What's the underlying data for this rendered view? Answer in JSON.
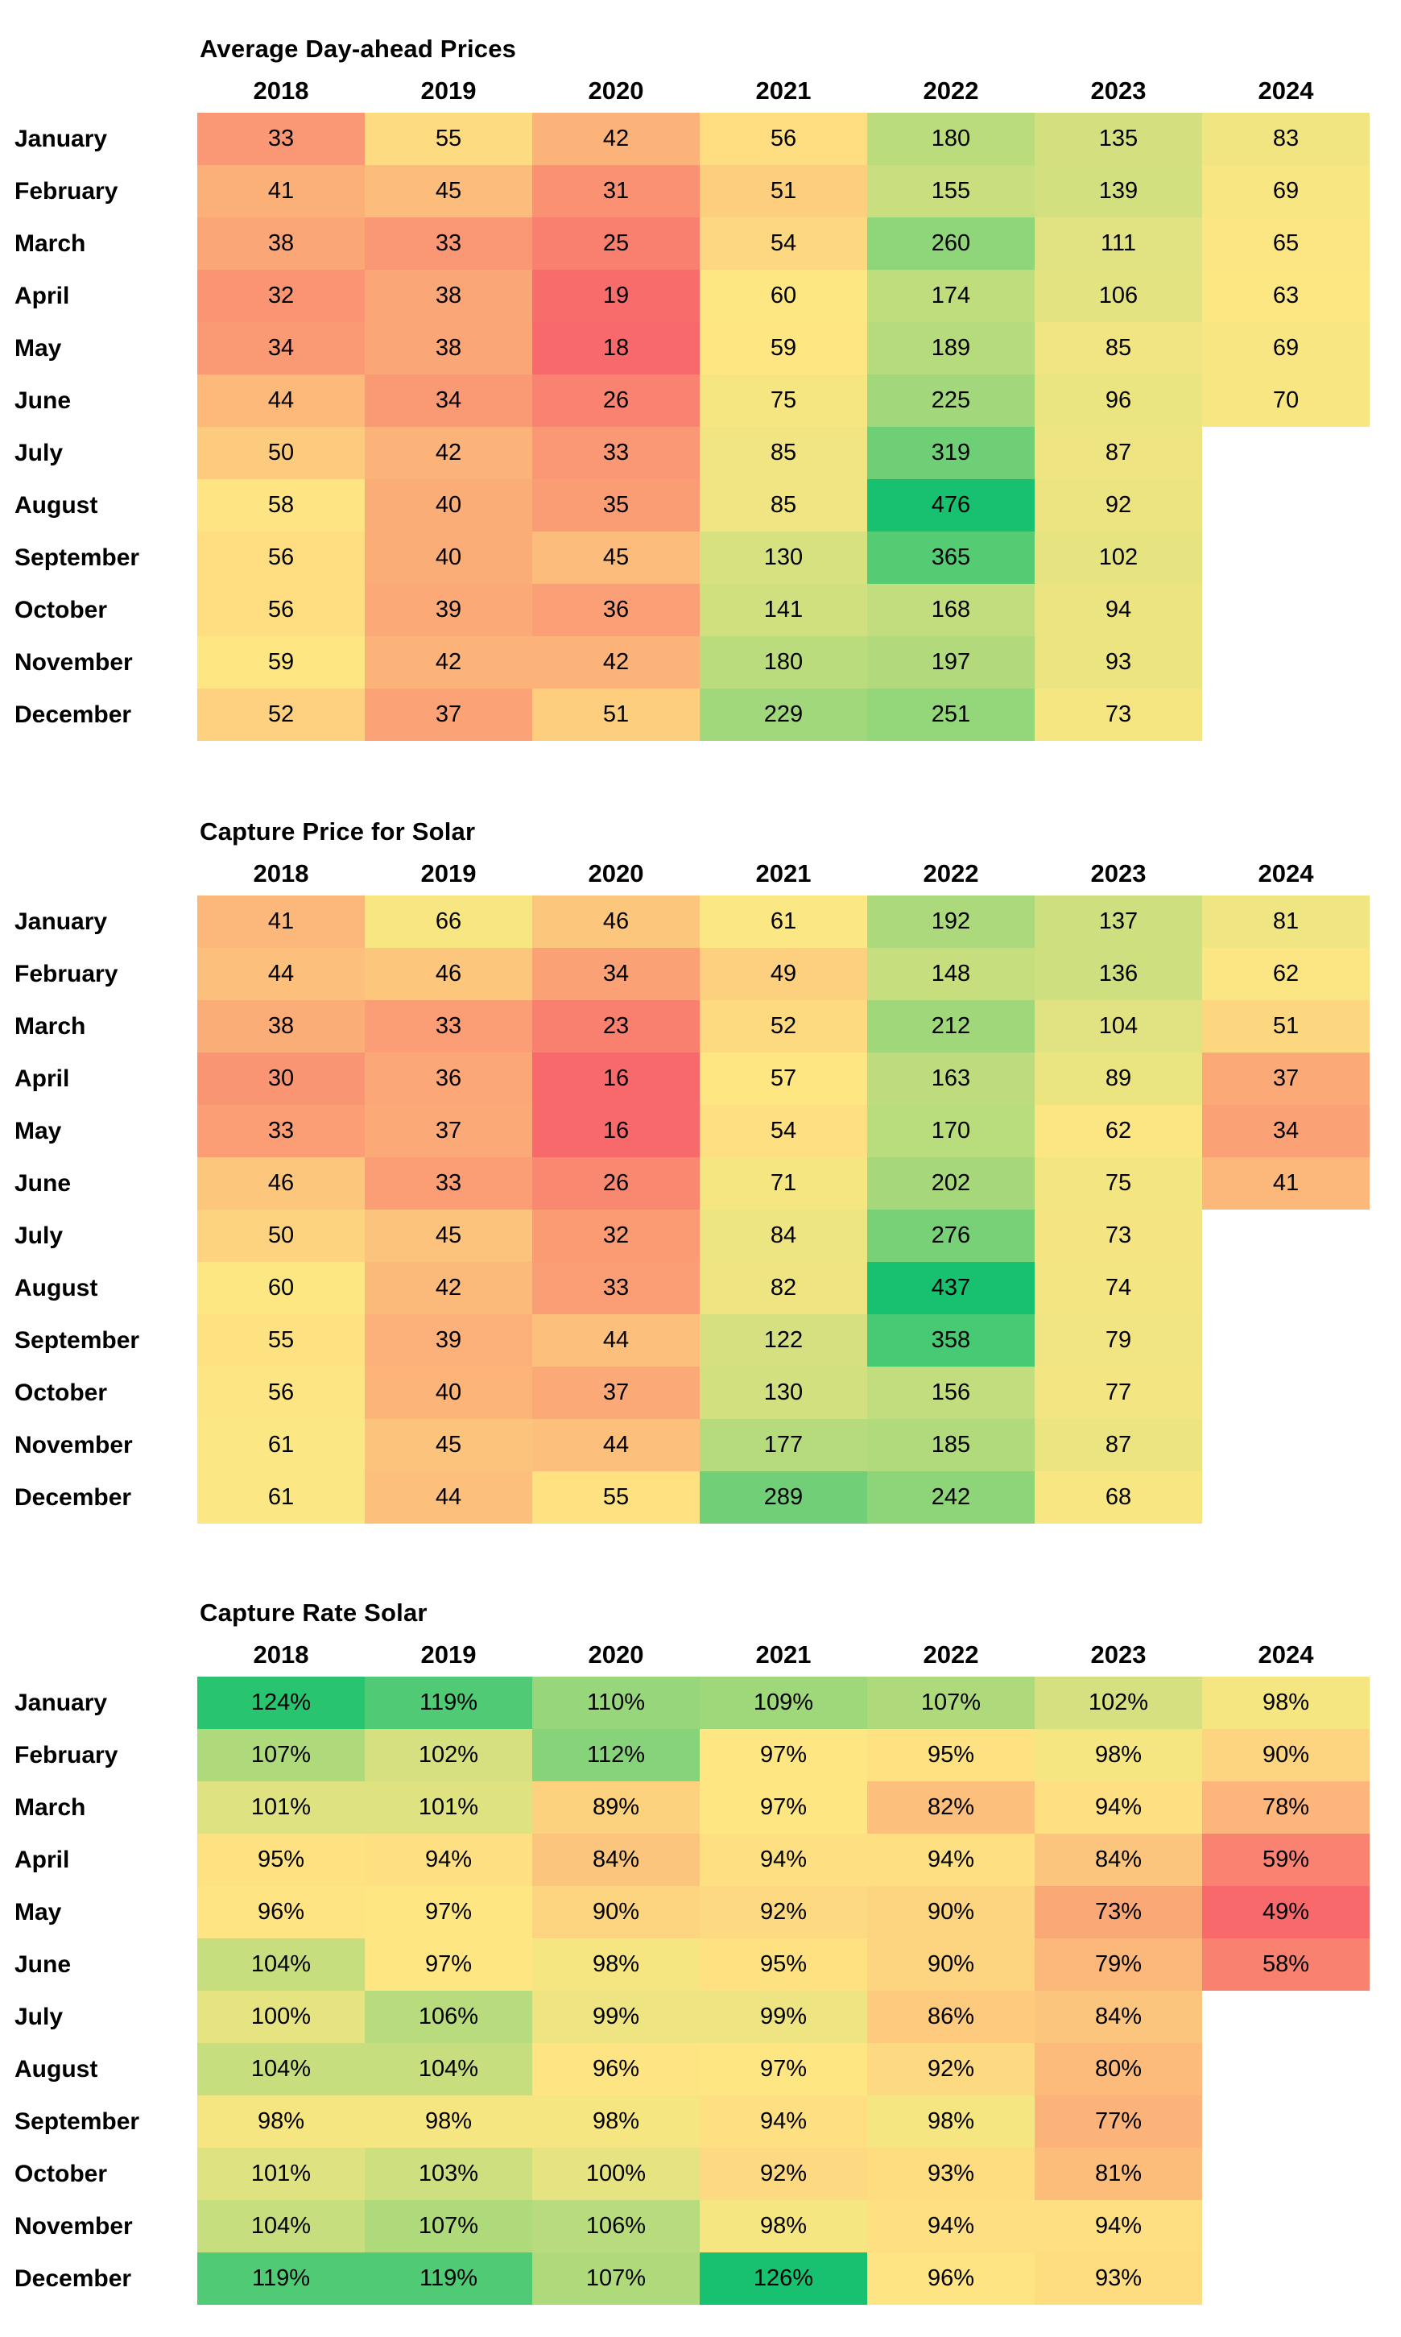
{
  "background": "#ffffff",
  "color_scale": {
    "min_color": "#F8696B",
    "mid_color": "#FEE783",
    "max_color": "#18C16F",
    "midpoint": "50th-percentile",
    "note": "3-color red-yellow-green scale applied per table"
  },
  "months": [
    "January",
    "February",
    "March",
    "April",
    "May",
    "June",
    "July",
    "August",
    "September",
    "October",
    "November",
    "December"
  ],
  "years": [
    "2018",
    "2019",
    "2020",
    "2021",
    "2022",
    "2023",
    "2024"
  ],
  "chart_data": [
    {
      "type": "heatmap",
      "title": "Average Day-ahead Prices",
      "value_format": "number",
      "x": "years",
      "y": "months",
      "rows": [
        [
          33,
          55,
          42,
          56,
          180,
          135,
          83
        ],
        [
          41,
          45,
          31,
          51,
          155,
          139,
          69
        ],
        [
          38,
          33,
          25,
          54,
          260,
          111,
          65
        ],
        [
          32,
          38,
          19,
          60,
          174,
          106,
          63
        ],
        [
          34,
          38,
          18,
          59,
          189,
          85,
          69
        ],
        [
          44,
          34,
          26,
          75,
          225,
          96,
          70
        ],
        [
          50,
          42,
          33,
          85,
          319,
          87,
          null
        ],
        [
          58,
          40,
          35,
          85,
          476,
          92,
          null
        ],
        [
          56,
          40,
          45,
          130,
          365,
          102,
          null
        ],
        [
          56,
          39,
          36,
          141,
          168,
          94,
          null
        ],
        [
          59,
          42,
          42,
          180,
          197,
          93,
          null
        ],
        [
          52,
          37,
          51,
          229,
          251,
          73,
          null
        ]
      ]
    },
    {
      "type": "heatmap",
      "title": "Capture Price for Solar",
      "value_format": "number",
      "x": "years",
      "y": "months",
      "rows": [
        [
          41,
          66,
          46,
          61,
          192,
          137,
          81
        ],
        [
          44,
          46,
          34,
          49,
          148,
          136,
          62
        ],
        [
          38,
          33,
          23,
          52,
          212,
          104,
          51
        ],
        [
          30,
          36,
          16,
          57,
          163,
          89,
          37
        ],
        [
          33,
          37,
          16,
          54,
          170,
          62,
          34
        ],
        [
          46,
          33,
          26,
          71,
          202,
          75,
          41
        ],
        [
          50,
          45,
          32,
          84,
          276,
          73,
          null
        ],
        [
          60,
          42,
          33,
          82,
          437,
          74,
          null
        ],
        [
          55,
          39,
          44,
          122,
          358,
          79,
          null
        ],
        [
          56,
          40,
          37,
          130,
          156,
          77,
          null
        ],
        [
          61,
          45,
          44,
          177,
          185,
          87,
          null
        ],
        [
          61,
          44,
          55,
          289,
          242,
          68,
          null
        ]
      ]
    },
    {
      "type": "heatmap",
      "title": "Capture Rate Solar",
      "value_format": "percent",
      "x": "years",
      "y": "months",
      "rows": [
        [
          124,
          119,
          110,
          109,
          107,
          102,
          98
        ],
        [
          107,
          102,
          112,
          97,
          95,
          98,
          90
        ],
        [
          101,
          101,
          89,
          97,
          82,
          94,
          78
        ],
        [
          95,
          94,
          84,
          94,
          94,
          84,
          59
        ],
        [
          96,
          97,
          90,
          92,
          90,
          73,
          49
        ],
        [
          104,
          97,
          98,
          95,
          90,
          79,
          58
        ],
        [
          100,
          106,
          99,
          99,
          86,
          84,
          null
        ],
        [
          104,
          104,
          96,
          97,
          92,
          80,
          null
        ],
        [
          98,
          98,
          98,
          94,
          98,
          77,
          null
        ],
        [
          101,
          103,
          100,
          92,
          93,
          81,
          null
        ],
        [
          104,
          107,
          106,
          98,
          94,
          94,
          null
        ],
        [
          119,
          119,
          107,
          126,
          96,
          93,
          null
        ]
      ]
    }
  ]
}
